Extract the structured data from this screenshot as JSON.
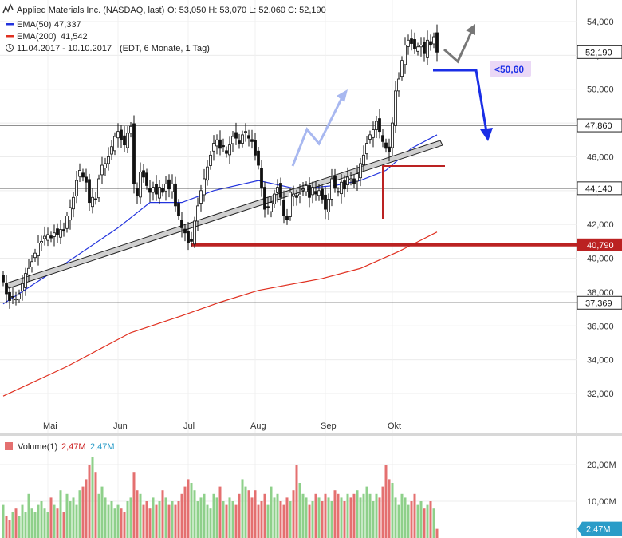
{
  "header": {
    "instrument": "Applied Materials Inc. (NASDAQ, last)",
    "ohlc": "O: 53,050   H: 53,070   L: 52,060   C: 52,190",
    "ema50_label": "EMA(50)",
    "ema50_value": "47,337",
    "ema200_label": "EMA(200)",
    "ema200_value": "41,542",
    "range": "11.04.2017 - 10.10.2017",
    "range_info": "(EDT, 6 Monate, 1 Tag)",
    "icon_main": "wave-chart-icon",
    "icon_clock": "clock-icon"
  },
  "colors": {
    "up": "#ffffff",
    "down": "#111111",
    "ema50": "#2233dd",
    "ema200": "#e03020",
    "support": "#bb2222",
    "target_arrow": "#1a2ee6",
    "vol_up": "#8ed08a",
    "vol_down": "#e47070",
    "vol_last": "#2a9cc8"
  },
  "chart_data": {
    "type": "candlestick",
    "ylim": [
      31000,
      55000
    ],
    "yticks": [
      "32,000",
      "34,000",
      "36,000",
      "38,000",
      "40,000",
      "42,000",
      "44,000",
      "46,000",
      "48,000",
      "50,000",
      "52,000",
      "54,000"
    ],
    "ytick_values": [
      32000,
      34000,
      36000,
      38000,
      40000,
      42000,
      44000,
      46000,
      48000,
      50000,
      52000,
      54000
    ],
    "month_labels": [
      "Mai",
      "Jun",
      "Jul",
      "Aug",
      "Sep",
      "Okt"
    ],
    "month_start_index": [
      14,
      36,
      58,
      79,
      101,
      122
    ],
    "closes": [
      38.6,
      37.9,
      37.5,
      37.7,
      37.6,
      37.9,
      38.5,
      39.1,
      39.4,
      39.8,
      40.3,
      40.9,
      41.0,
      41.3,
      41.4,
      41.2,
      41.5,
      41.4,
      41.7,
      41.6,
      42.5,
      43.0,
      43.6,
      44.6,
      45.2,
      44.8,
      44.5,
      43.3,
      43.6,
      43.5,
      44.7,
      45.5,
      45.6,
      46.0,
      46.6,
      47.2,
      47.5,
      47.0,
      46.7,
      47.4,
      47.8,
      44.4,
      43.7,
      45.1,
      44.8,
      44.3,
      43.9,
      44.2,
      43.8,
      44.2,
      43.9,
      44.4,
      44.1,
      44.4,
      43.1,
      42.5,
      41.8,
      41.5,
      40.9,
      41.0,
      42.2,
      43.1,
      44.0,
      44.7,
      45.4,
      46.1,
      46.8,
      47.0,
      46.5,
      46.6,
      46.2,
      46.7,
      47.2,
      47.1,
      46.8,
      47.3,
      47.5,
      47.1,
      46.9,
      46.1,
      45.5,
      44.2,
      42.9,
      43.0,
      43.3,
      43.8,
      44.2,
      43.6,
      42.5,
      42.3,
      43.9,
      43.8,
      43.6,
      43.8,
      44.1,
      44.3,
      43.6,
      44.2,
      43.8,
      44.0,
      43.5,
      42.9,
      43.5,
      44.7,
      44.2,
      43.9,
      44.5,
      44.1,
      44.8,
      44.7,
      44.4,
      45.0,
      45.6,
      46.1,
      46.8,
      47.3,
      47.6,
      48.1,
      47.5,
      46.9,
      46.5,
      46.3,
      48.0,
      49.9,
      50.6,
      51.7,
      52.6,
      52.9,
      52.7,
      52.4,
      52.5,
      52.6,
      52.1,
      52.9,
      52.6,
      53.1,
      52.19
    ],
    "candles_note": "",
    "ema50_points": [
      [
        0,
        37.3
      ],
      [
        18,
        39.5
      ],
      [
        36,
        41.8
      ],
      [
        46,
        43.3
      ],
      [
        56,
        43.3
      ],
      [
        66,
        44.0
      ],
      [
        80,
        44.6
      ],
      [
        92,
        44.1
      ],
      [
        104,
        44.3
      ],
      [
        112,
        44.6
      ],
      [
        120,
        45.2
      ],
      [
        128,
        46.5
      ],
      [
        136,
        47.3
      ]
    ],
    "ema200_points": [
      [
        0,
        31.85
      ],
      [
        20,
        33.6
      ],
      [
        40,
        35.6
      ],
      [
        56,
        36.6
      ],
      [
        68,
        37.4
      ],
      [
        80,
        38.1
      ],
      [
        100,
        38.8
      ],
      [
        112,
        39.4
      ],
      [
        124,
        40.4
      ],
      [
        136,
        41.55
      ]
    ],
    "horizontal_levels": [
      {
        "value": 47860,
        "label": "47,860",
        "style": "black"
      },
      {
        "value": 44140,
        "label": "44,140",
        "style": "black"
      },
      {
        "value": 40790,
        "label": "40,790",
        "style": "red"
      },
      {
        "value": 37369,
        "label": "37,369",
        "style": "black"
      }
    ],
    "last_price": {
      "value": 52190,
      "label": "52,190"
    },
    "target_label": "<50,60",
    "volume": {
      "title": "Volume(1)",
      "value_red": "2,47M",
      "value_blue": "2,47M",
      "yticks": [
        "10,00M",
        "20,00M"
      ],
      "ytick_values": [
        10,
        20
      ],
      "ylim": [
        0,
        24
      ],
      "last_label": "2,47M",
      "bars": [
        9,
        6,
        5,
        7,
        8,
        6,
        9,
        7,
        12,
        8,
        7,
        9,
        10,
        8,
        7,
        11,
        9,
        8,
        13,
        7,
        12,
        10,
        11,
        9,
        13,
        14,
        16,
        20,
        22,
        18,
        12,
        14,
        11,
        9,
        10,
        8,
        9,
        8,
        7,
        10,
        11,
        18,
        13,
        12,
        9,
        10,
        8,
        11,
        9,
        10,
        13,
        11,
        9,
        10,
        9,
        10,
        12,
        14,
        16,
        15,
        13,
        10,
        11,
        12,
        9,
        8,
        12,
        11,
        14,
        10,
        9,
        11,
        10,
        9,
        12,
        16,
        14,
        13,
        11,
        13,
        9,
        10,
        12,
        9,
        14,
        11,
        12,
        10,
        9,
        11,
        10,
        13,
        20,
        15,
        12,
        11,
        9,
        10,
        12,
        11,
        10,
        12,
        11,
        10,
        13,
        12,
        11,
        10,
        12,
        11,
        12,
        13,
        11,
        12,
        14,
        12,
        10,
        12,
        11,
        14,
        20,
        16,
        15,
        11,
        9,
        12,
        11,
        9,
        10,
        12,
        9,
        10,
        8,
        9,
        10,
        8,
        2.47
      ]
    }
  }
}
